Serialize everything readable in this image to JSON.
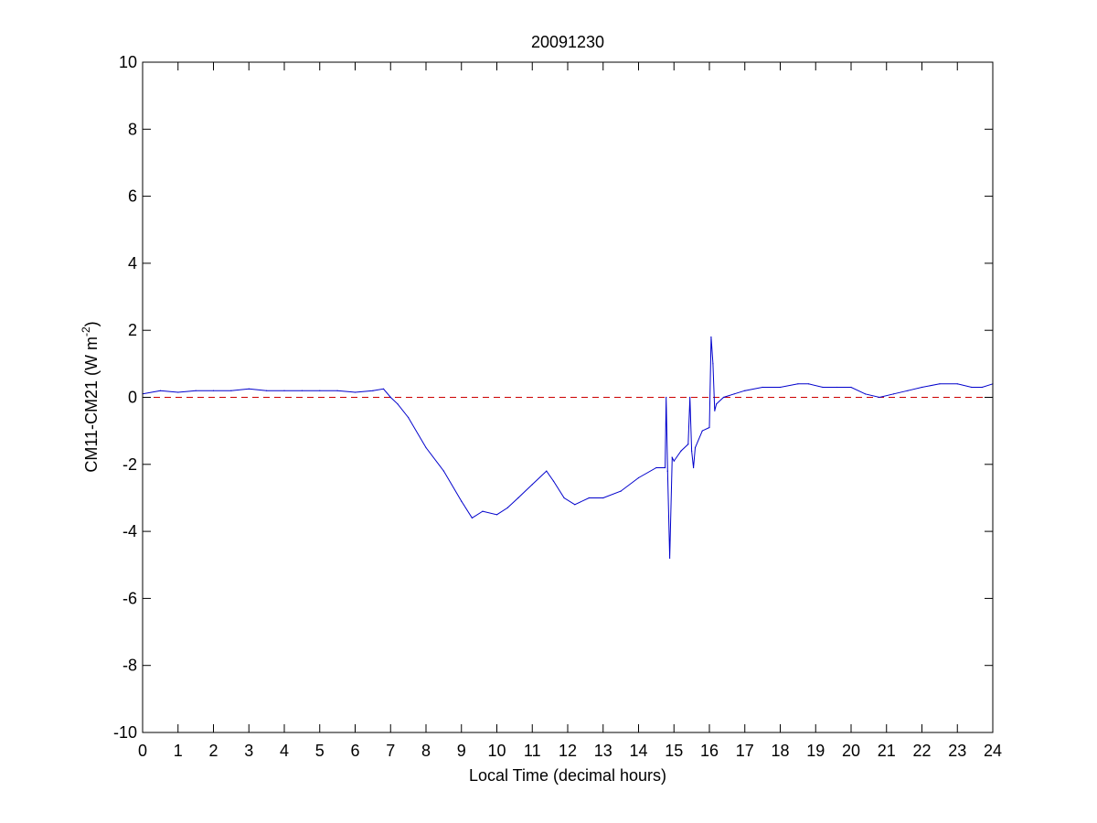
{
  "chart_data": {
    "type": "line",
    "title": "20091230",
    "xlabel": "Local Time (decimal hours)",
    "ylabel_main": "CM11-CM21 (W m",
    "ylabel_sup": "-2",
    "ylabel_close": ")",
    "xlim": [
      0,
      24
    ],
    "ylim": [
      -10,
      10
    ],
    "x_ticks": [
      0,
      1,
      2,
      3,
      4,
      5,
      6,
      7,
      8,
      9,
      10,
      11,
      12,
      13,
      14,
      15,
      16,
      17,
      18,
      19,
      20,
      21,
      22,
      23,
      24
    ],
    "y_ticks": [
      -10,
      -8,
      -6,
      -4,
      -2,
      0,
      2,
      4,
      6,
      8,
      10
    ],
    "grid": false,
    "reference_line": {
      "y": 0,
      "style": "dashed",
      "color": "#cc0000"
    },
    "series": [
      {
        "color": "#0000cc",
        "x": [
          0.0,
          0.5,
          1.0,
          1.5,
          2.0,
          2.5,
          3.0,
          3.5,
          4.0,
          4.5,
          5.0,
          5.5,
          6.0,
          6.5,
          6.8,
          7.0,
          7.2,
          7.5,
          8.0,
          8.5,
          9.0,
          9.3,
          9.6,
          10.0,
          10.3,
          10.6,
          11.0,
          11.4,
          11.6,
          11.9,
          12.2,
          12.6,
          13.0,
          13.5,
          14.0,
          14.5,
          14.75,
          14.78,
          14.82,
          14.88,
          14.95,
          15.0,
          15.2,
          15.4,
          15.45,
          15.5,
          15.55,
          15.6,
          15.8,
          16.0,
          16.05,
          16.1,
          16.15,
          16.2,
          16.4,
          16.7,
          17.0,
          17.5,
          18.0,
          18.5,
          18.8,
          19.2,
          19.6,
          20.0,
          20.4,
          20.8,
          21.2,
          21.6,
          22.0,
          22.5,
          23.0,
          23.4,
          23.7,
          24.0
        ],
        "values": [
          0.1,
          0.2,
          0.15,
          0.2,
          0.2,
          0.2,
          0.25,
          0.2,
          0.2,
          0.2,
          0.2,
          0.2,
          0.15,
          0.2,
          0.25,
          0.0,
          -0.2,
          -0.6,
          -1.5,
          -2.2,
          -3.1,
          -3.6,
          -3.4,
          -3.5,
          -3.3,
          -3.0,
          -2.6,
          -2.2,
          -2.5,
          -3.0,
          -3.2,
          -3.0,
          -3.0,
          -2.8,
          -2.4,
          -2.1,
          -2.1,
          0.0,
          -2.2,
          -4.8,
          -1.8,
          -1.9,
          -1.6,
          -1.4,
          0.0,
          -1.6,
          -2.1,
          -1.5,
          -1.0,
          -0.9,
          1.8,
          1.0,
          -0.4,
          -0.2,
          0.0,
          0.1,
          0.2,
          0.3,
          0.3,
          0.4,
          0.4,
          0.3,
          0.3,
          0.3,
          0.1,
          0.0,
          0.1,
          0.2,
          0.3,
          0.4,
          0.4,
          0.3,
          0.3,
          0.4
        ]
      }
    ]
  }
}
